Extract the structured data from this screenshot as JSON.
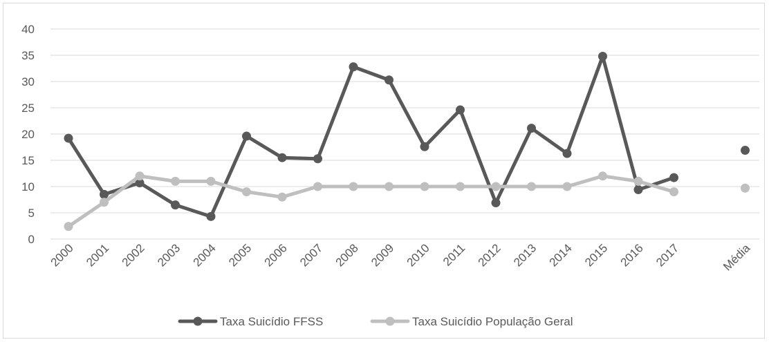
{
  "chart_data": {
    "type": "line",
    "categories": [
      "2000",
      "2001",
      "2002",
      "2003",
      "2004",
      "2005",
      "2006",
      "2007",
      "2008",
      "2009",
      "2010",
      "2011",
      "2012",
      "2013",
      "2014",
      "2015",
      "2016",
      "2017",
      "",
      "Média"
    ],
    "series": [
      {
        "name": "Taxa Suicídio FFSS",
        "color": "#595959",
        "values": [
          19.2,
          8.5,
          10.7,
          6.5,
          4.3,
          19.6,
          15.5,
          15.3,
          32.8,
          30.3,
          17.6,
          24.6,
          6.9,
          21.1,
          16.3,
          34.8,
          9.4,
          11.7,
          null,
          16.9
        ]
      },
      {
        "name": "Taxa Suicídio População Geral",
        "color": "#bfbfbf",
        "values": [
          2.4,
          7.0,
          12.0,
          11.0,
          11.0,
          9.0,
          8.0,
          10.0,
          10.0,
          10.0,
          10.0,
          10.0,
          10.0,
          10.0,
          10.0,
          12.0,
          11.0,
          9.0,
          null,
          9.7
        ]
      }
    ],
    "ylim": [
      0,
      40
    ],
    "yticks": [
      "0",
      "5",
      "10",
      "15",
      "20",
      "25",
      "30",
      "35",
      "40"
    ],
    "grid": true,
    "legend_position": "bottom",
    "title": "",
    "xlabel": "",
    "ylabel": ""
  }
}
